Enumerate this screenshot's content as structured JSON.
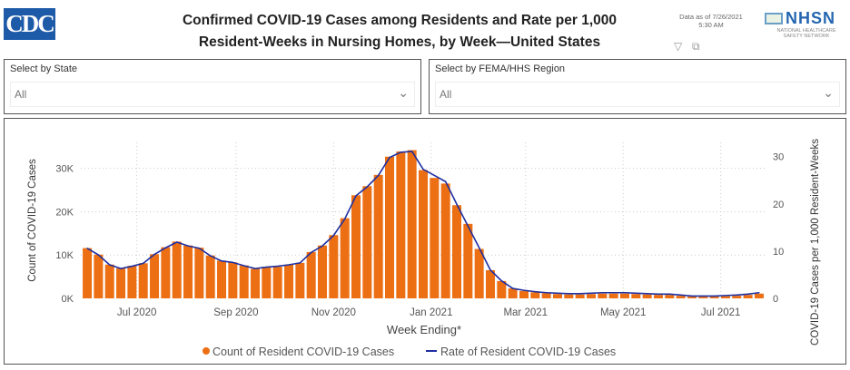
{
  "header": {
    "logo": "CDC",
    "title_line1": "Confirmed COVID-19 Cases among Residents and Rate per 1,000",
    "title_line2": "Resident-Weeks in Nursing Homes, by Week—United States",
    "data_as_of_line1": "Data as of 7/26/2021",
    "data_as_of_line2": "5:30 AM",
    "nhsn_logo": "NHSN",
    "nhsn_sub1": "NATIONAL HEALTHCARE",
    "nhsn_sub2": "SAFETY NETWORK"
  },
  "icons": {
    "filter": "filter-icon",
    "focus": "focus-mode-icon",
    "dropdown": "chevron-down-icon"
  },
  "slicers": [
    {
      "label": "Select by State",
      "value": "All"
    },
    {
      "label": "Select by FEMA/HHS Region",
      "value": "All"
    }
  ],
  "colors": {
    "bars": "#ed6f13",
    "line": "#1f2fa0",
    "logo": "#1d5aa8"
  },
  "chart_data": {
    "type": "bar+line",
    "xlabel": "Week Ending*",
    "ylabel": "Count of COVID-19 Cases",
    "y2label": "COVID-19 Cases per 1,000 Resident-Weeks",
    "ylim": [
      0,
      36000
    ],
    "y2lim": [
      0,
      33
    ],
    "yticks": [
      {
        "v": 0,
        "label": "0K"
      },
      {
        "v": 10000,
        "label": "10K"
      },
      {
        "v": 20000,
        "label": "20K"
      },
      {
        "v": 30000,
        "label": "30K"
      }
    ],
    "y2ticks": [
      {
        "v": 0,
        "label": "0"
      },
      {
        "v": 10,
        "label": "10"
      },
      {
        "v": 20,
        "label": "20"
      },
      {
        "v": 30,
        "label": "30"
      }
    ],
    "xticks": [
      {
        "d": "2020-07-01",
        "label": "Jul 2020"
      },
      {
        "d": "2020-09-01",
        "label": "Sep 2020"
      },
      {
        "d": "2020-11-01",
        "label": "Nov 2020"
      },
      {
        "d": "2021-01-01",
        "label": "Jan 2021"
      },
      {
        "d": "2021-03-01",
        "label": "Mar 2021"
      },
      {
        "d": "2021-05-01",
        "label": "May 2021"
      },
      {
        "d": "2021-07-01",
        "label": "Jul 2021"
      }
    ],
    "grid": true,
    "legend_position": "bottom",
    "x": [
      "2020-05-31",
      "2020-06-07",
      "2020-06-14",
      "2020-06-21",
      "2020-06-28",
      "2020-07-05",
      "2020-07-12",
      "2020-07-19",
      "2020-07-26",
      "2020-08-02",
      "2020-08-09",
      "2020-08-16",
      "2020-08-23",
      "2020-08-30",
      "2020-09-06",
      "2020-09-13",
      "2020-09-20",
      "2020-09-27",
      "2020-10-04",
      "2020-10-11",
      "2020-10-18",
      "2020-10-25",
      "2020-11-01",
      "2020-11-08",
      "2020-11-15",
      "2020-11-22",
      "2020-11-29",
      "2020-12-06",
      "2020-12-13",
      "2020-12-20",
      "2020-12-27",
      "2021-01-03",
      "2021-01-10",
      "2021-01-17",
      "2021-01-24",
      "2021-01-31",
      "2021-02-07",
      "2021-02-14",
      "2021-02-21",
      "2021-02-28",
      "2021-03-07",
      "2021-03-14",
      "2021-03-21",
      "2021-03-28",
      "2021-04-04",
      "2021-04-11",
      "2021-04-18",
      "2021-04-25",
      "2021-05-02",
      "2021-05-09",
      "2021-05-16",
      "2021-05-23",
      "2021-05-30",
      "2021-06-06",
      "2021-06-13",
      "2021-06-20",
      "2021-06-27",
      "2021-07-04",
      "2021-07-11",
      "2021-07-18",
      "2021-07-25"
    ],
    "series": [
      {
        "name": "Count of Resident COVID-19 Cases",
        "type": "bar",
        "axis": "left",
        "values": [
          11600,
          10100,
          7800,
          6900,
          7500,
          8100,
          10200,
          11800,
          13100,
          12200,
          11700,
          9900,
          8700,
          8300,
          7600,
          6800,
          7300,
          7300,
          7800,
          8200,
          10700,
          12200,
          14600,
          18500,
          23800,
          25900,
          28500,
          32700,
          33900,
          34200,
          29600,
          27800,
          26500,
          21500,
          17200,
          11400,
          6500,
          4000,
          2300,
          1700,
          1400,
          1200,
          1000,
          900,
          900,
          1000,
          1100,
          1100,
          1100,
          1000,
          900,
          800,
          800,
          600,
          400,
          400,
          400,
          500,
          600,
          800,
          1100
        ]
      },
      {
        "name": "Rate of Resident COVID-19 Cases",
        "type": "line",
        "axis": "right",
        "values": [
          10.6,
          9.2,
          7.1,
          6.3,
          6.8,
          7.4,
          9.3,
          10.7,
          11.9,
          11.1,
          10.6,
          9.0,
          7.9,
          7.6,
          6.9,
          6.3,
          6.6,
          6.8,
          7.1,
          7.5,
          9.7,
          11.1,
          13.3,
          16.8,
          21.7,
          23.6,
          26.0,
          29.8,
          30.9,
          31.1,
          27.3,
          26.0,
          24.7,
          19.9,
          15.3,
          10.7,
          6.0,
          3.7,
          2.1,
          1.7,
          1.4,
          1.2,
          1.1,
          1.0,
          1.0,
          1.1,
          1.2,
          1.2,
          1.2,
          1.1,
          1.0,
          0.9,
          0.9,
          0.7,
          0.5,
          0.5,
          0.5,
          0.6,
          0.7,
          0.9,
          1.2
        ]
      }
    ]
  }
}
